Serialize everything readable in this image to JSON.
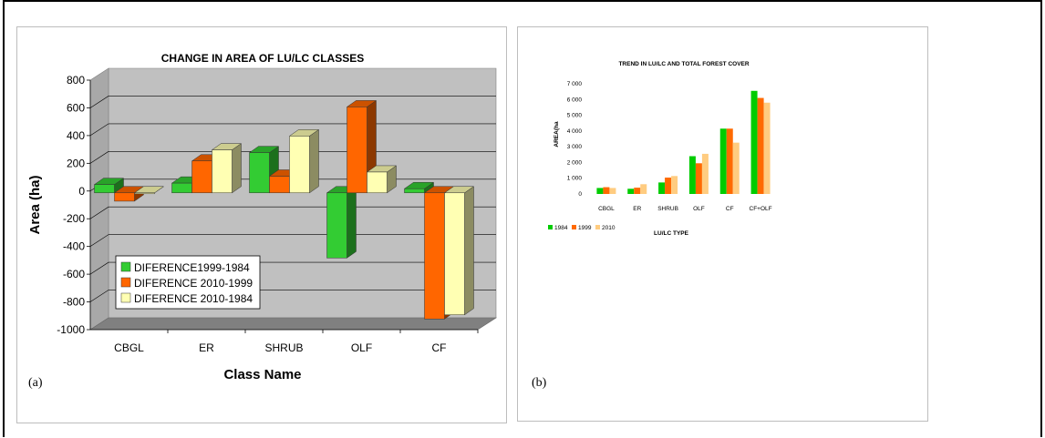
{
  "figure": {
    "panel_a_label": "(a)",
    "panel_b_label": "(b)"
  },
  "colors": {
    "green": "#33cc33",
    "orange": "#ff6600",
    "cream": "#ffffb3",
    "b_green": "#00cc00",
    "b_orange": "#ff6a00",
    "b_peach": "#ffcc80",
    "wall": "#c0c0c0",
    "floor": "#808080"
  },
  "chart_data": [
    {
      "type": "bar",
      "title": "CHANGE IN AREA OF LU/LC CLASSES",
      "xlabel": "Class Name",
      "ylabel": "Area (ha)",
      "categories": [
        "CBGL",
        "ER",
        "SHRUB",
        "OLF",
        "CF"
      ],
      "series": [
        {
          "name": "DIFERENCE1999-1984",
          "values": [
            60,
            70,
            290,
            -470,
            30
          ]
        },
        {
          "name": "DIFERENCE 2010-1999",
          "values": [
            -60,
            230,
            120,
            620,
            -910
          ]
        },
        {
          "name": "DIFERENCE 2010-1984",
          "values": [
            0,
            310,
            410,
            150,
            -880
          ]
        }
      ],
      "ylim": [
        -1000,
        800
      ],
      "yticks": [
        "800",
        "600",
        "400",
        "200",
        "0",
        "-200",
        "-400",
        "-600",
        "-800",
        "-1000"
      ],
      "grid": true,
      "legend": "bottom-left",
      "style": "3d"
    },
    {
      "type": "bar",
      "title": "TREND IN LU/LC AND TOTAL FOREST COVER",
      "xlabel": "LU/LC TYPE",
      "ylabel": "AREA(ha",
      "categories": [
        "CBGL",
        "ER",
        "SHRUB",
        "OLF",
        "CF",
        "CF+OLF"
      ],
      "series": [
        {
          "name": "1984",
          "values": [
            380,
            330,
            730,
            2400,
            4150,
            6550
          ]
        },
        {
          "name": "1999",
          "values": [
            430,
            400,
            1040,
            1950,
            4150,
            6100
          ]
        },
        {
          "name": "2010",
          "values": [
            380,
            620,
            1140,
            2550,
            3260,
            5800
          ]
        }
      ],
      "ylim": [
        0,
        7000
      ],
      "yticks": [
        "7 000",
        "6 000",
        "5 000",
        "4 000",
        "3 000",
        "2 000",
        "1 000",
        "0"
      ],
      "grid": false,
      "legend": "bottom-left"
    }
  ]
}
